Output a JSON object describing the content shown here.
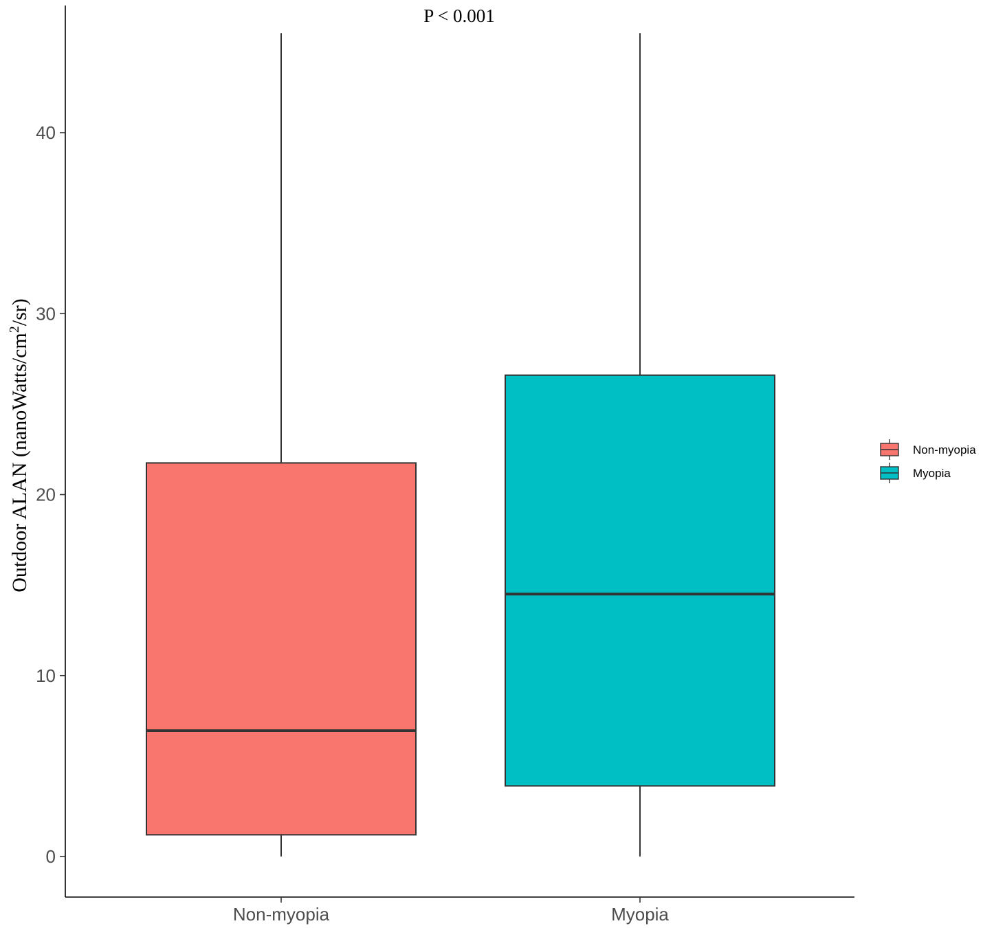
{
  "chart_data": {
    "type": "box",
    "annotation": "P < 0.001",
    "ylabel": {
      "prefix": "Outdoor ALAN (nanoWatts/cm",
      "superscript": "2",
      "suffix": "/sr)"
    },
    "ylim": [
      -2.2,
      46
    ],
    "yticks": [
      0,
      10,
      20,
      30,
      40
    ],
    "categories": [
      "Non-myopia",
      "Myopia"
    ],
    "series": [
      {
        "name": "Non-myopia",
        "color": "#F8766D",
        "min": 0,
        "q1": 1.2,
        "median": 6.95,
        "q3": 21.75,
        "max": 45.5
      },
      {
        "name": "Myopia",
        "color": "#00BFC4",
        "min": 0,
        "q1": 3.9,
        "median": 14.5,
        "q3": 26.6,
        "max": 45.5
      }
    ],
    "legend": {
      "position": "right",
      "entries": [
        "Non-myopia",
        "Myopia"
      ]
    },
    "grid": false
  }
}
